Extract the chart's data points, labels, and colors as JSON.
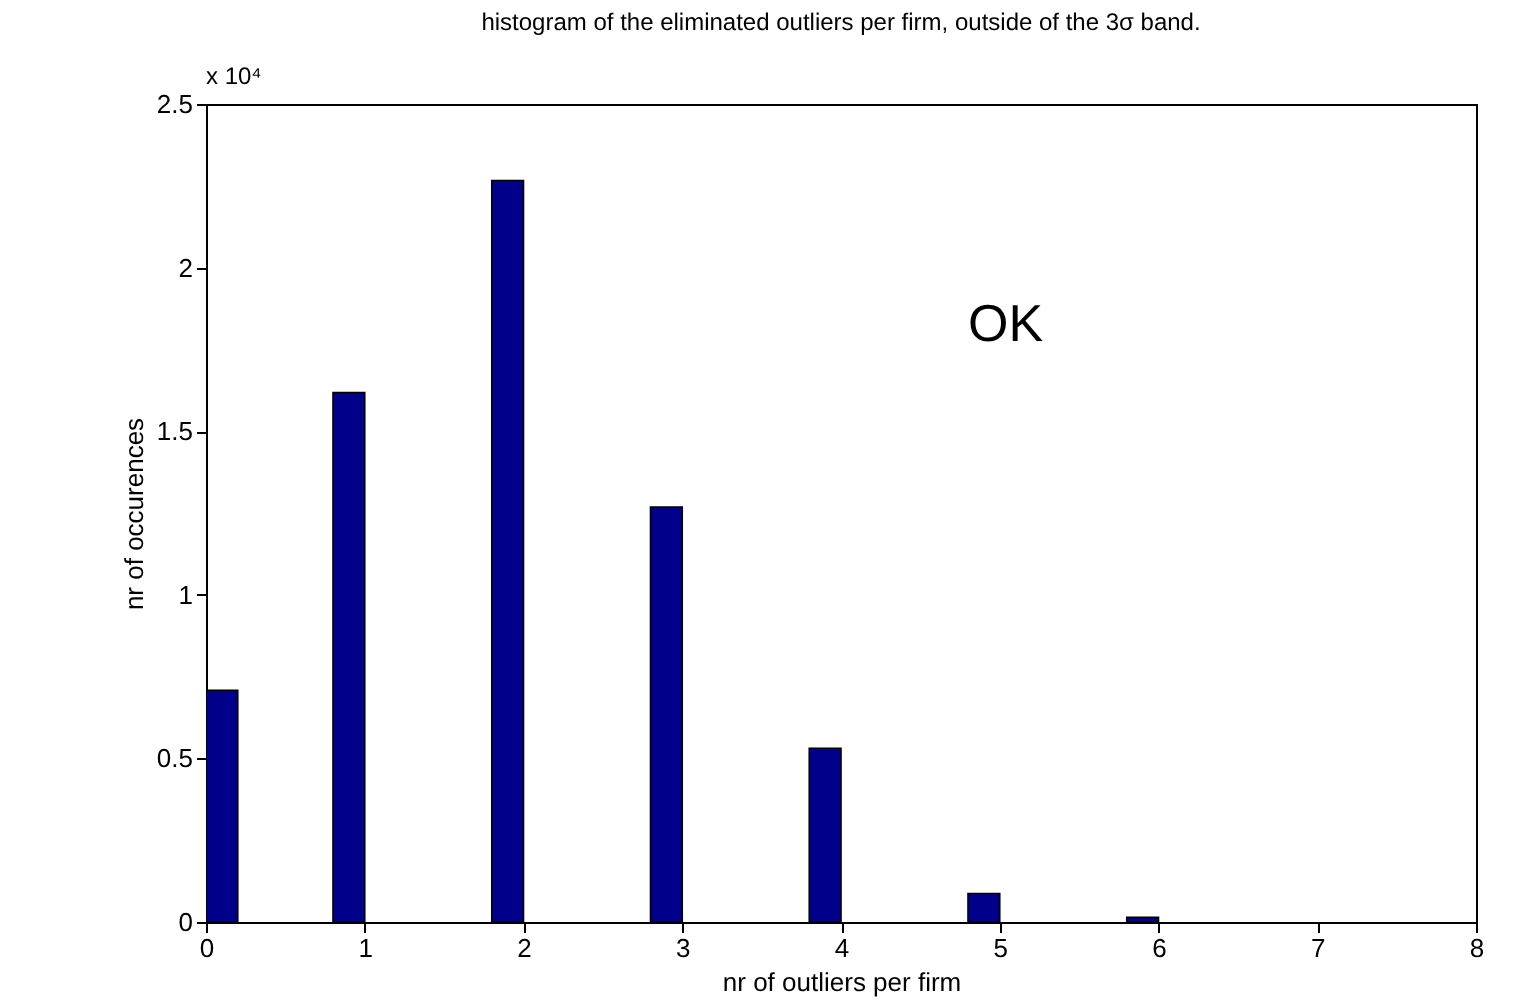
{
  "chart_data": {
    "type": "bar",
    "title": "histogram of the eliminated outliers per firm, outside of the 3σ band.",
    "xlabel": "nr of outliers per firm",
    "ylabel": "nr of occurences",
    "x": [
      0.1,
      0.9,
      1.9,
      2.9,
      3.9,
      4.9,
      5.9
    ],
    "values": [
      0.708,
      1.618,
      2.266,
      1.268,
      0.531,
      0.087,
      0.014
    ],
    "color": "#00008b",
    "xlim": [
      0,
      8
    ],
    "xticks": [
      0,
      1,
      2,
      3,
      4,
      5,
      6,
      7,
      8
    ],
    "ylim": [
      0,
      2.5
    ],
    "yticks": [
      0,
      0.5,
      1,
      1.5,
      2,
      2.5
    ],
    "annotations": [
      "x 10⁴",
      "OK"
    ],
    "grid": false
  }
}
